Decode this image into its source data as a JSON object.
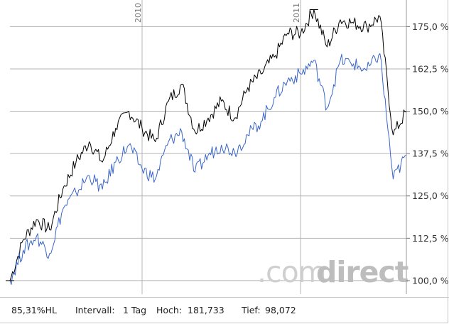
{
  "footer": {
    "ratio": "85,31%HL",
    "interval_label": "Intervall:",
    "interval_value": "1 Tag",
    "high_label": "Hoch:",
    "high_value": "181,733",
    "low_label": "Tief:",
    "low_value": "98,072"
  },
  "watermark": {
    "prefix": ".com",
    "suffix": "direct"
  },
  "colors": {
    "series_black": "#000000",
    "series_blue": "#3a66c8",
    "grid": "#b4b4b4",
    "background": "#ffffff"
  },
  "chart_data": {
    "type": "line",
    "title": "",
    "xlabel": "",
    "ylabel": "",
    "ylim": [
      96,
      182
    ],
    "xlim": [
      "2009-03",
      "2011-09"
    ],
    "y_ticks": [
      "100,0 %",
      "112,5 %",
      "125,0 %",
      "137,5 %",
      "150,0 %",
      "162,5 %",
      "175,0 %"
    ],
    "y_tick_values": [
      100.0,
      112.5,
      125.0,
      137.5,
      150.0,
      162.5,
      175.0
    ],
    "x_ticks": [
      "2010",
      "2011"
    ],
    "x_tick_values": [
      "2010-01",
      "2011-01"
    ],
    "grid": true,
    "legend": "none",
    "series": [
      {
        "color": "#000000",
        "x": [
          "2009-03",
          "2009-04",
          "2009-05",
          "2009-06",
          "2009-07",
          "2009-08",
          "2009-09",
          "2009-10",
          "2009-11",
          "2009-12",
          "2010-01",
          "2010-02",
          "2010-03",
          "2010-04",
          "2010-05",
          "2010-06",
          "2010-07",
          "2010-08",
          "2010-09",
          "2010-10",
          "2010-11",
          "2010-12",
          "2011-01",
          "2011-02",
          "2011-03",
          "2011-04",
          "2011-05",
          "2011-06",
          "2011-07",
          "2011-08",
          "2011-09"
        ],
        "values": [
          100,
          112,
          118,
          115,
          127,
          135,
          141,
          135,
          145,
          150,
          145,
          141,
          153,
          158,
          144,
          148,
          153,
          148,
          157,
          161,
          166,
          173,
          173,
          180,
          169,
          177,
          176,
          175,
          178,
          143,
          150
        ]
      },
      {
        "color": "#3a66c8",
        "x": [
          "2009-03",
          "2009-04",
          "2009-05",
          "2009-06",
          "2009-07",
          "2009-08",
          "2009-09",
          "2009-10",
          "2009-11",
          "2009-12",
          "2010-01",
          "2010-02",
          "2010-03",
          "2010-04",
          "2010-05",
          "2010-06",
          "2010-07",
          "2010-08",
          "2010-09",
          "2010-10",
          "2010-11",
          "2010-12",
          "2011-01",
          "2011-02",
          "2011-03",
          "2011-04",
          "2011-05",
          "2011-06",
          "2011-07",
          "2011-08",
          "2011-09"
        ],
        "values": [
          100,
          109,
          113,
          108,
          121,
          126,
          131,
          127,
          135,
          140,
          133,
          130,
          141,
          144,
          132,
          137,
          140,
          138,
          143,
          147,
          154,
          159,
          161,
          165,
          151,
          165,
          164,
          162,
          167,
          130,
          137
        ]
      }
    ]
  }
}
